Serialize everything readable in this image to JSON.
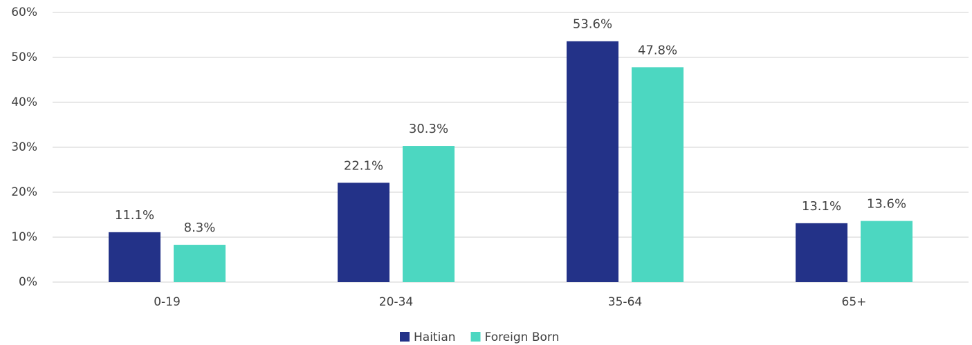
{
  "chart_data": {
    "type": "bar",
    "categories": [
      "0-19",
      "20-34",
      "35-64",
      "65+"
    ],
    "series": [
      {
        "name": "Haitian",
        "color": "#233288",
        "values": [
          11.1,
          22.1,
          53.6,
          13.1
        ],
        "value_labels": [
          "11.1%",
          "22.1%",
          "53.6%",
          "13.1%"
        ]
      },
      {
        "name": "Foreign Born",
        "color": "#4cd7c1",
        "values": [
          8.3,
          30.3,
          47.8,
          13.6
        ],
        "value_labels": [
          "8.3%",
          "30.3%",
          "47.8%",
          "13.6%"
        ]
      }
    ],
    "ylim": [
      0,
      60
    ],
    "yticks": [
      {
        "value": 0,
        "label": "0%"
      },
      {
        "value": 10,
        "label": "10%"
      },
      {
        "value": 20,
        "label": "20%"
      },
      {
        "value": 30,
        "label": "30%"
      },
      {
        "value": 40,
        "label": "40%"
      },
      {
        "value": 50,
        "label": "50%"
      },
      {
        "value": 60,
        "label": "60%"
      }
    ],
    "grid": true,
    "legend": "bottom"
  }
}
